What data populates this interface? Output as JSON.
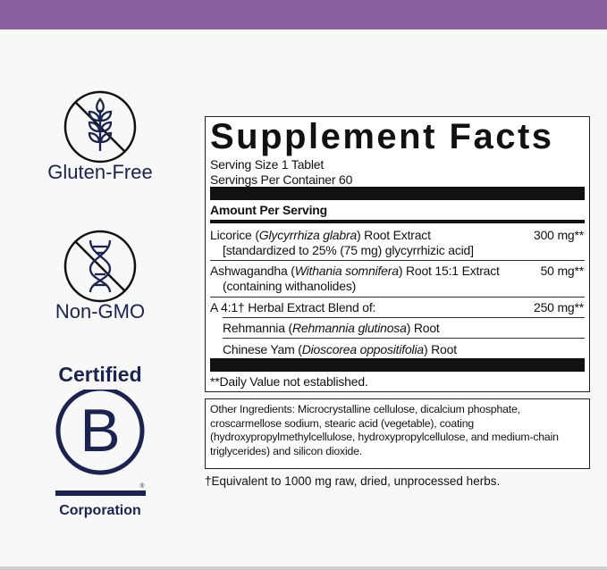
{
  "header_color": "#8a5fa0",
  "badges": {
    "gluten_free": {
      "icon": "wheat-crossed-icon",
      "label": "Gluten-Free"
    },
    "non_gmo": {
      "icon": "dna-crossed-icon",
      "label": "Non-GMO"
    },
    "bcorp": {
      "top": "Certified",
      "letter": "B",
      "bottom": "Corporation",
      "registered": "®"
    }
  },
  "facts": {
    "title": "Supplement Facts",
    "serving_size": "Serving Size 1 Tablet",
    "servings_per_container": "Servings Per Container 60",
    "amount_header": "Amount Per Serving",
    "items": [
      {
        "name_pre": "Licorice (",
        "name_latin": "Glycyrrhiza glabra",
        "name_post": ") Root Extract",
        "sub": "[standardized to 25% (75 mg) glycyrrhizic acid]",
        "amount": "300 mg**"
      },
      {
        "name_pre": "Ashwagandha (",
        "name_latin": "Withania somnifera",
        "name_post": ") Root 15:1 Extract",
        "sub": "(containing withanolides)",
        "amount": "50 mg**"
      },
      {
        "name_pre": "A 4:1† Herbal Extract Blend of:",
        "amount": "250 mg**"
      },
      {
        "name_pre": "Rehmannia (",
        "name_latin": "Rehmannia glutinosa",
        "name_post": ") Root"
      },
      {
        "name_pre": "Chinese Yam (",
        "name_latin": "Dioscorea oppositifolia",
        "name_post": ") Root"
      }
    ],
    "daily_value_note": "**Daily Value not established."
  },
  "other_ingredients": "Other Ingredients: Microcrystalline cellulose, dicalcium phosphate, croscarmellose sodium, stearic acid (vegetable), coating (hydroxypropylmethylcellulose, hydroxypropylcellulose, and medium-chain triglycerides) and silicon dioxide.",
  "footnote": "†Equivalent to 1000 mg raw, dried, unprocessed herbs."
}
